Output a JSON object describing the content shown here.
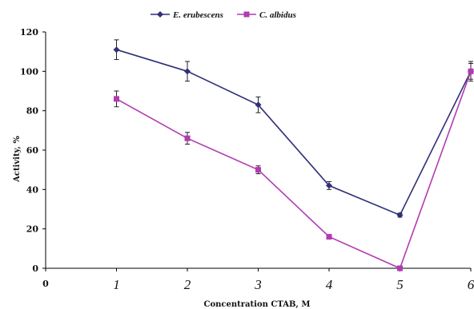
{
  "chart_data": {
    "type": "line",
    "x": [
      1,
      2,
      3,
      4,
      5,
      6
    ],
    "xlabel": "Concentration CTAB, M",
    "ylabel": "Activity, %",
    "xticks": [
      "0",
      "1",
      "2",
      "3",
      "4",
      "5",
      "6"
    ],
    "yticks": [
      "0",
      "20",
      "40",
      "60",
      "80",
      "100",
      "120"
    ],
    "xlim": [
      0,
      6
    ],
    "ylim": [
      0,
      120
    ],
    "grid": false,
    "legend_position": "top-center",
    "series": [
      {
        "name": "E. erubescens",
        "marker": "diamond",
        "color": "#2f2f7a",
        "values": [
          111,
          100,
          83,
          42,
          27,
          100
        ],
        "errors": [
          5,
          5,
          4,
          2,
          1,
          5
        ]
      },
      {
        "name": "C. albidus",
        "marker": "square",
        "color": "#b23bb2",
        "values": [
          86,
          66,
          50,
          16,
          0,
          100
        ],
        "errors": [
          4,
          3,
          2,
          0,
          0,
          4
        ]
      }
    ]
  }
}
